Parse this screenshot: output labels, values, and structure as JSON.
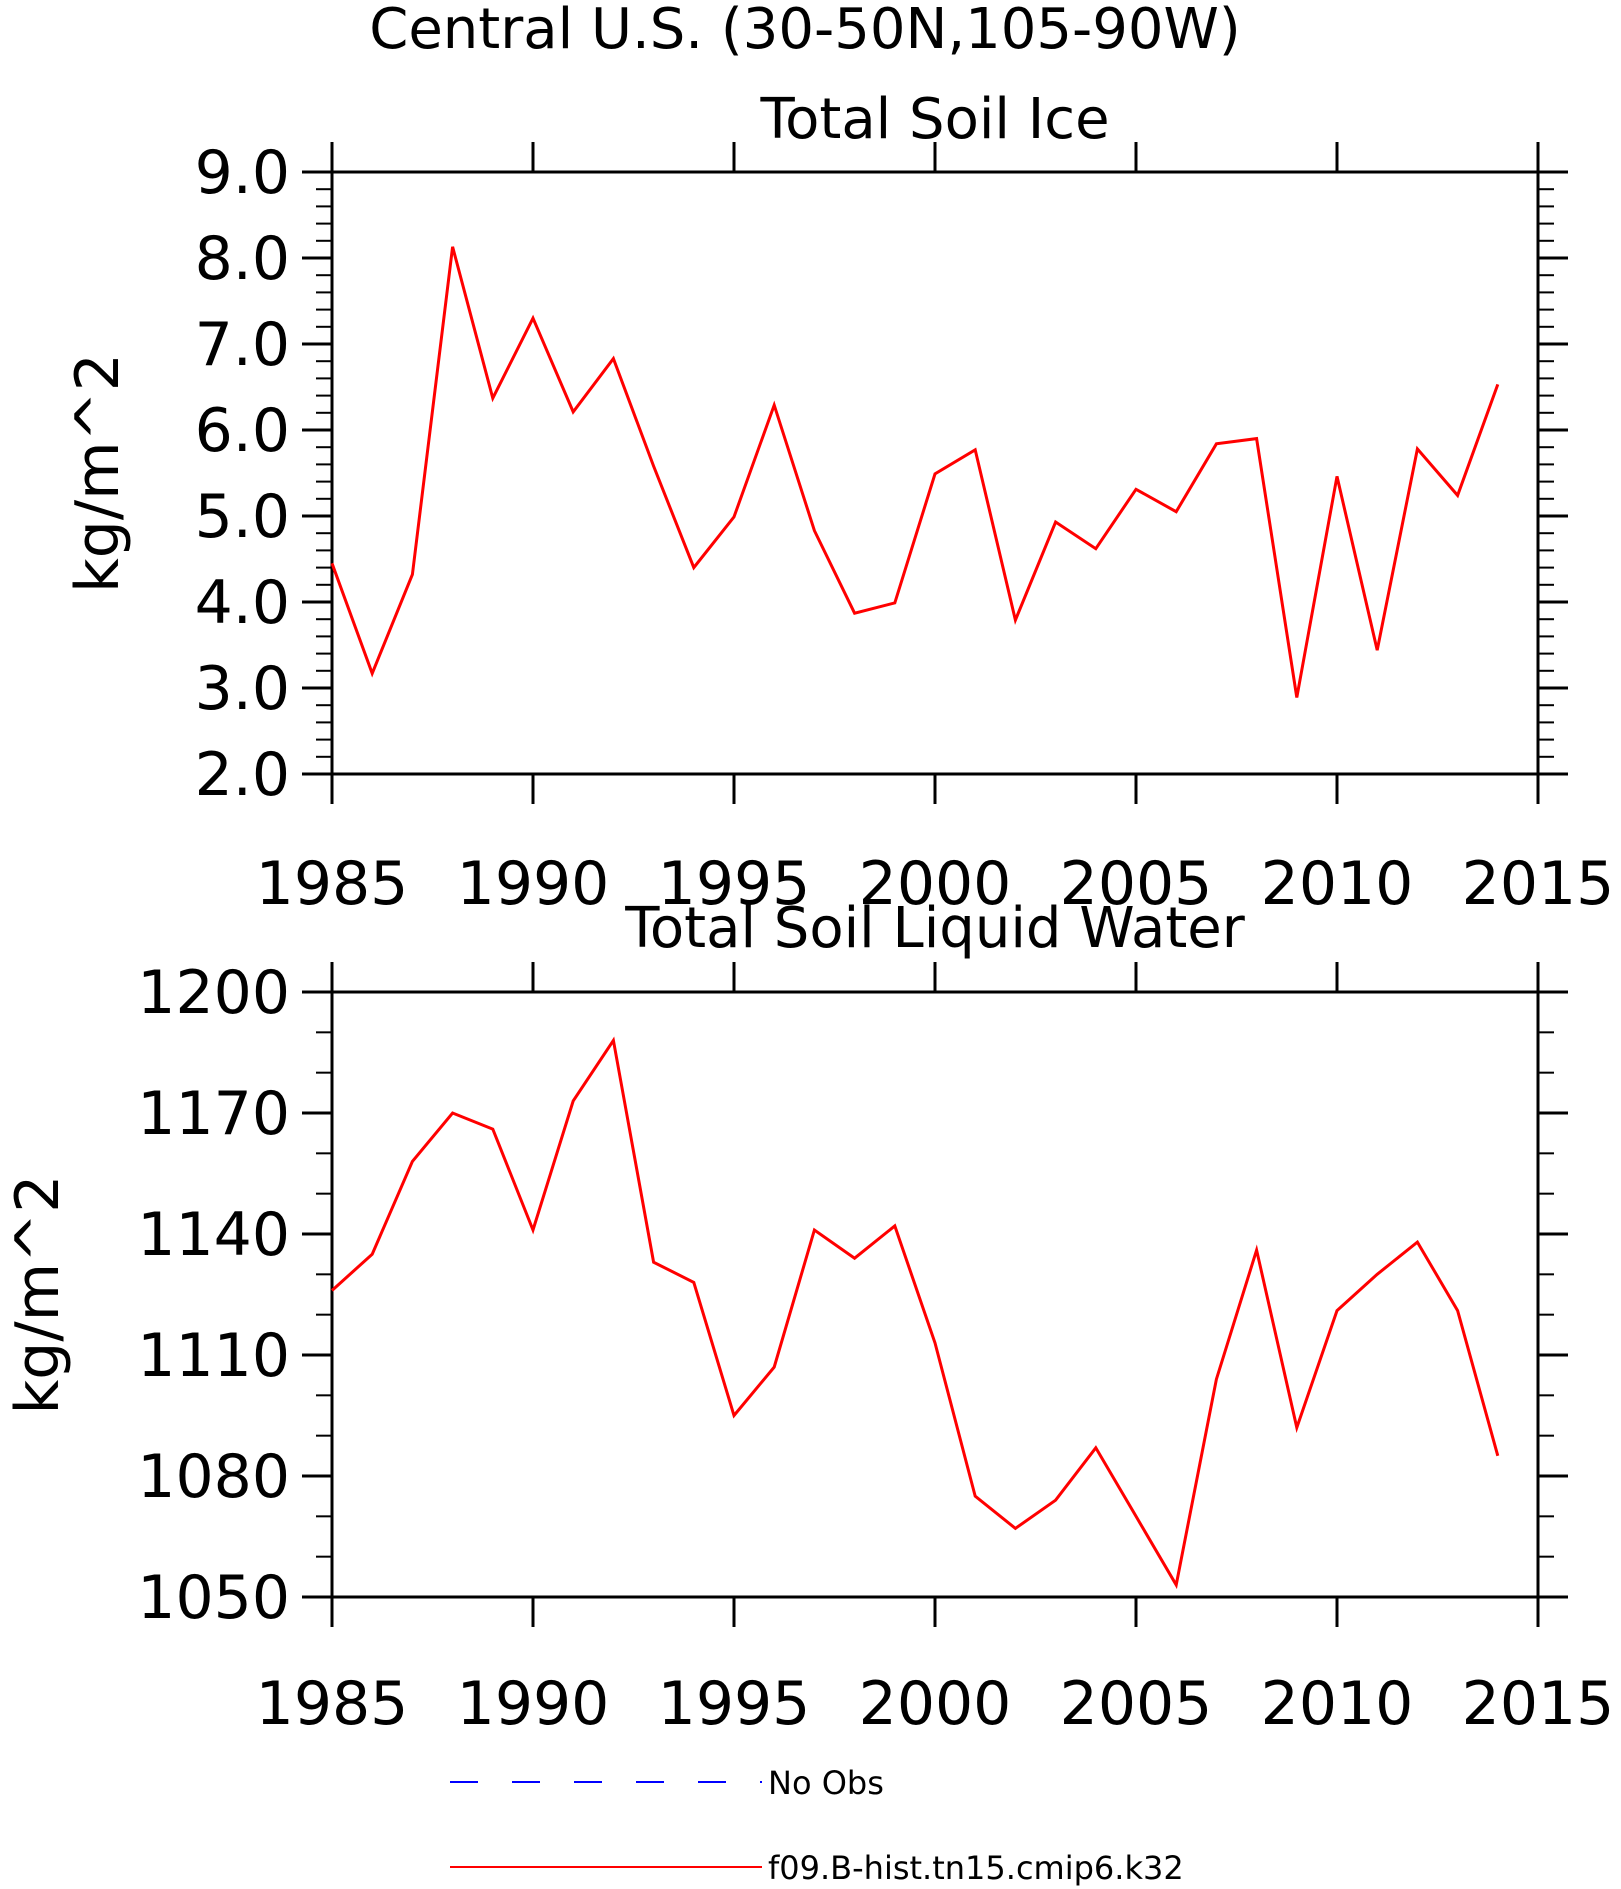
{
  "figure_title": "Central U.S. (30-50N,105-90W)",
  "chart_data": [
    {
      "type": "line",
      "title": "Total Soil Ice",
      "xlabel": "",
      "ylabel": "kg/m^2",
      "xlim": [
        1985,
        2015
      ],
      "ylim": [
        2.0,
        9.0
      ],
      "x_ticks": [
        "1985",
        "1990",
        "1995",
        "2000",
        "2005",
        "2010",
        "2015"
      ],
      "y_ticks": [
        "2.0",
        "3.0",
        "4.0",
        "5.0",
        "6.0",
        "7.0",
        "8.0",
        "9.0"
      ],
      "grid": false,
      "series": [
        {
          "name": "f09.B-hist.tn15.cmip6.k32",
          "color": "#ff0000",
          "x": [
            1985,
            1986,
            1987,
            1988,
            1989,
            1990,
            1991,
            1992,
            1993,
            1994,
            1995,
            1996,
            1997,
            1998,
            1999,
            2000,
            2001,
            2002,
            2003,
            2004,
            2005,
            2006,
            2007,
            2008,
            2009,
            2010,
            2011,
            2012,
            2013,
            2014
          ],
          "values": [
            4.45,
            3.17,
            4.32,
            8.13,
            6.37,
            7.3,
            6.21,
            6.83,
            5.58,
            4.4,
            4.99,
            6.29,
            4.83,
            3.87,
            3.99,
            5.49,
            5.77,
            3.79,
            4.93,
            4.62,
            5.31,
            5.05,
            5.84,
            5.9,
            2.89,
            5.46,
            3.44,
            5.78,
            5.24,
            6.53
          ]
        }
      ]
    },
    {
      "type": "line",
      "title": "Total Soil Liquid Water",
      "xlabel": "",
      "ylabel": "kg/m^2",
      "xlim": [
        1985,
        2015
      ],
      "ylim": [
        1050,
        1200
      ],
      "x_ticks": [
        "1985",
        "1990",
        "1995",
        "2000",
        "2005",
        "2010",
        "2015"
      ],
      "y_ticks": [
        "1050",
        "1080",
        "1110",
        "1140",
        "1170",
        "1200"
      ],
      "grid": false,
      "series": [
        {
          "name": "f09.B-hist.tn15.cmip6.k32",
          "color": "#ff0000",
          "x": [
            1985,
            1986,
            1987,
            1988,
            1989,
            1990,
            1991,
            1992,
            1993,
            1994,
            1995,
            1996,
            1997,
            1998,
            1999,
            2000,
            2001,
            2002,
            2003,
            2004,
            2005,
            2006,
            2007,
            2008,
            2009,
            2010,
            2011,
            2012,
            2013,
            2014
          ],
          "values": [
            1126,
            1135,
            1158,
            1170,
            1166,
            1141,
            1173,
            1188,
            1133,
            1128,
            1095,
            1107,
            1141,
            1134,
            1142,
            1113,
            1075,
            1067,
            1074,
            1087,
            1070,
            1053,
            1104,
            1136,
            1092,
            1121,
            1130,
            1138,
            1121,
            1085
          ]
        }
      ]
    }
  ],
  "legend": {
    "placement": "bottom",
    "items": [
      {
        "label": "No Obs",
        "color": "#0000ff",
        "style": "dashed"
      },
      {
        "label": "f09.B-hist.tn15.cmip6.k32",
        "color": "#ff0000",
        "style": "solid"
      }
    ]
  }
}
